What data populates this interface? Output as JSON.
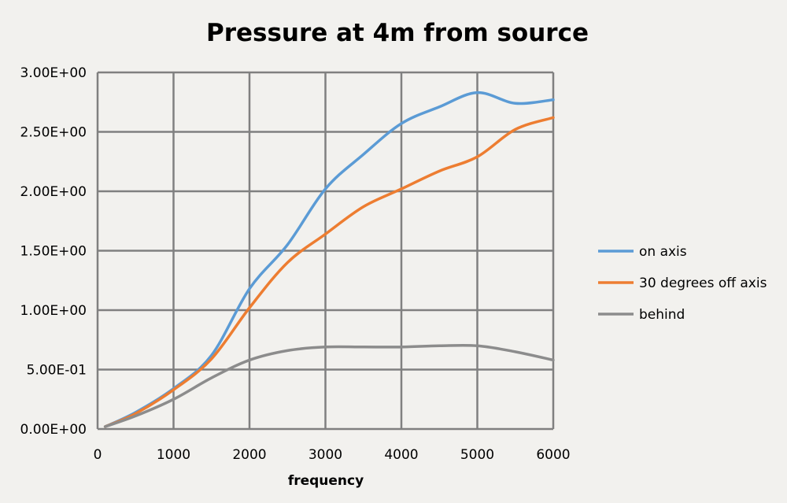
{
  "chart_data": {
    "type": "line",
    "title": "Pressure at 4m from source",
    "xlabel": "frequency",
    "ylabel": "",
    "xlim": [
      0,
      6000
    ],
    "ylim": [
      0,
      3.0
    ],
    "xticks": [
      "0",
      "1000",
      "2000",
      "3000",
      "4000",
      "5000",
      "6000"
    ],
    "xtick_values": [
      0,
      1000,
      2000,
      3000,
      4000,
      5000,
      6000
    ],
    "yticks": [
      "0.00E+00",
      "5.00E-01",
      "1.00E+00",
      "1.50E+00",
      "2.00E+00",
      "2.50E+00",
      "3.00E+00"
    ],
    "ytick_values": [
      0,
      0.5,
      1.0,
      1.5,
      2.0,
      2.5,
      3.0
    ],
    "grid": true,
    "smooth": true,
    "legend_position": "right",
    "x": [
      100,
      500,
      1000,
      1500,
      2000,
      2500,
      3000,
      3500,
      4000,
      4500,
      5000,
      5500,
      6000
    ],
    "series": [
      {
        "name": "on axis",
        "color": "#5b9bd5",
        "values": [
          0.02,
          0.14,
          0.34,
          0.62,
          1.18,
          1.55,
          2.02,
          2.31,
          2.57,
          2.71,
          2.83,
          2.74,
          2.77
        ]
      },
      {
        "name": "30 degrees off axis",
        "color": "#ed7d31",
        "values": [
          0.02,
          0.13,
          0.33,
          0.59,
          1.02,
          1.4,
          1.64,
          1.87,
          2.02,
          2.17,
          2.29,
          2.52,
          2.62
        ]
      },
      {
        "name": "behind",
        "color": "#8c8c8c",
        "values": [
          0.02,
          0.11,
          0.25,
          0.43,
          0.58,
          0.66,
          0.69,
          0.69,
          0.69,
          0.7,
          0.7,
          0.65,
          0.58
        ]
      }
    ]
  }
}
